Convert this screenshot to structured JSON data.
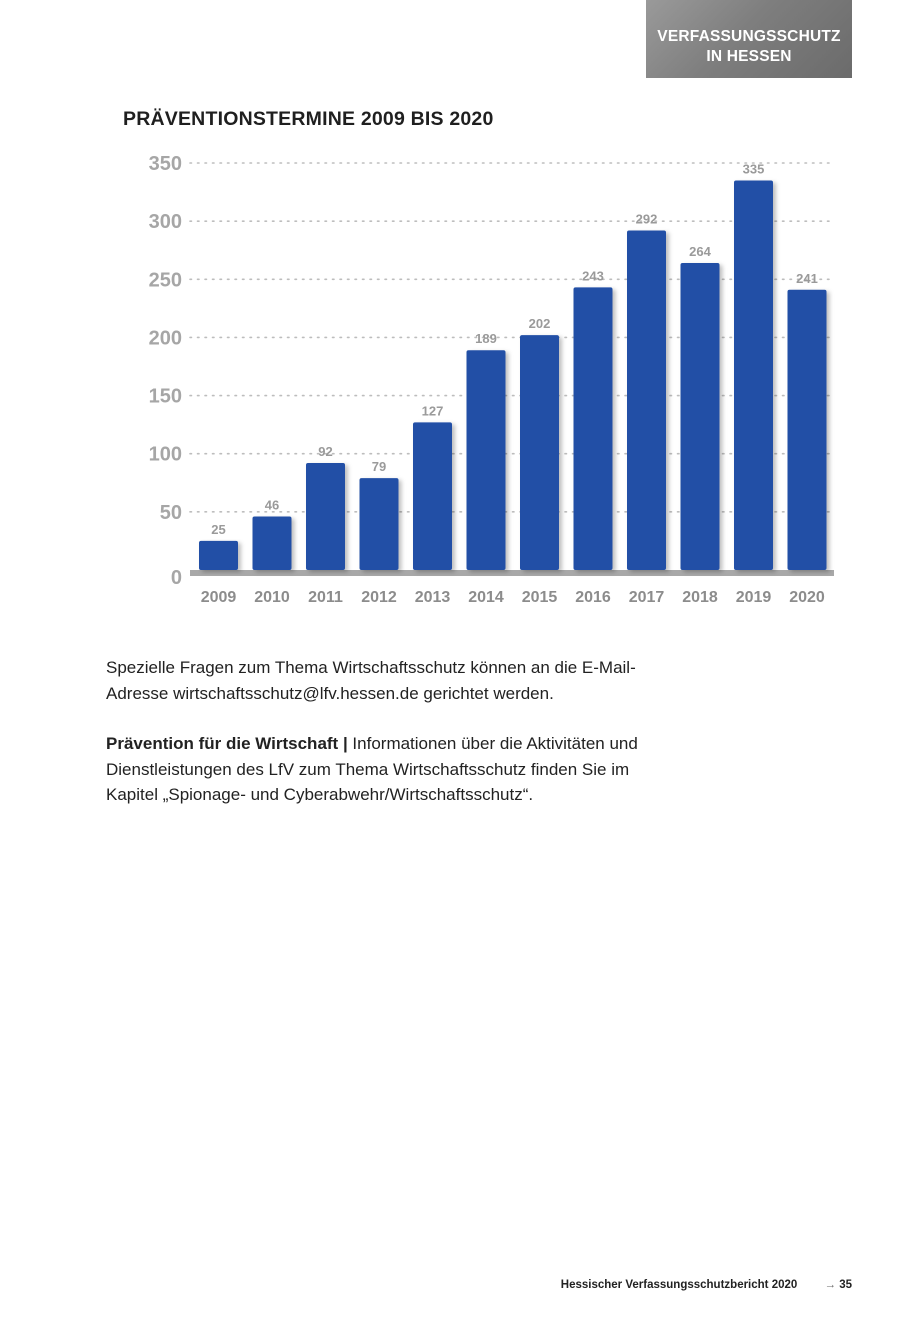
{
  "header": {
    "line1": "VERFASSUNGSSCHUTZ",
    "line2": "IN HESSEN"
  },
  "chart_data": {
    "type": "bar",
    "title": "PRÄVENTIONSTERMINE 2009 BIS 2020",
    "categories": [
      "2009",
      "2010",
      "2011",
      "2012",
      "2013",
      "2014",
      "2015",
      "2016",
      "2017",
      "2018",
      "2019",
      "2020"
    ],
    "values": [
      25,
      46,
      92,
      79,
      127,
      189,
      202,
      243,
      292,
      264,
      335,
      241
    ],
    "ylim": [
      0,
      350
    ],
    "yticks": [
      0,
      50,
      100,
      150,
      200,
      250,
      300,
      350
    ],
    "xlabel": "",
    "ylabel": "",
    "grid": "dotted horizontal",
    "bar_color": "#2150a6"
  },
  "paragraph1": "Spezielle Fragen zum Thema Wirtschaftsschutz können an die E-Mail-Adresse wirtschaftsschutz@lfv.hessen.de gerichtet werden.",
  "paragraph2": {
    "lead": "Prävention für die Wirtschaft |",
    "text": " Informationen über die Aktivitäten und Dienstleistungen des LfV zum Thema Wirtschaftsschutz finden Sie im Kapitel „Spionage- und Cyberabwehr/Wirtschaftsschutz“."
  },
  "footer": {
    "publication": "Hessischer Verfassungsschutzbericht 2020",
    "arrow": "→",
    "page": "35"
  }
}
